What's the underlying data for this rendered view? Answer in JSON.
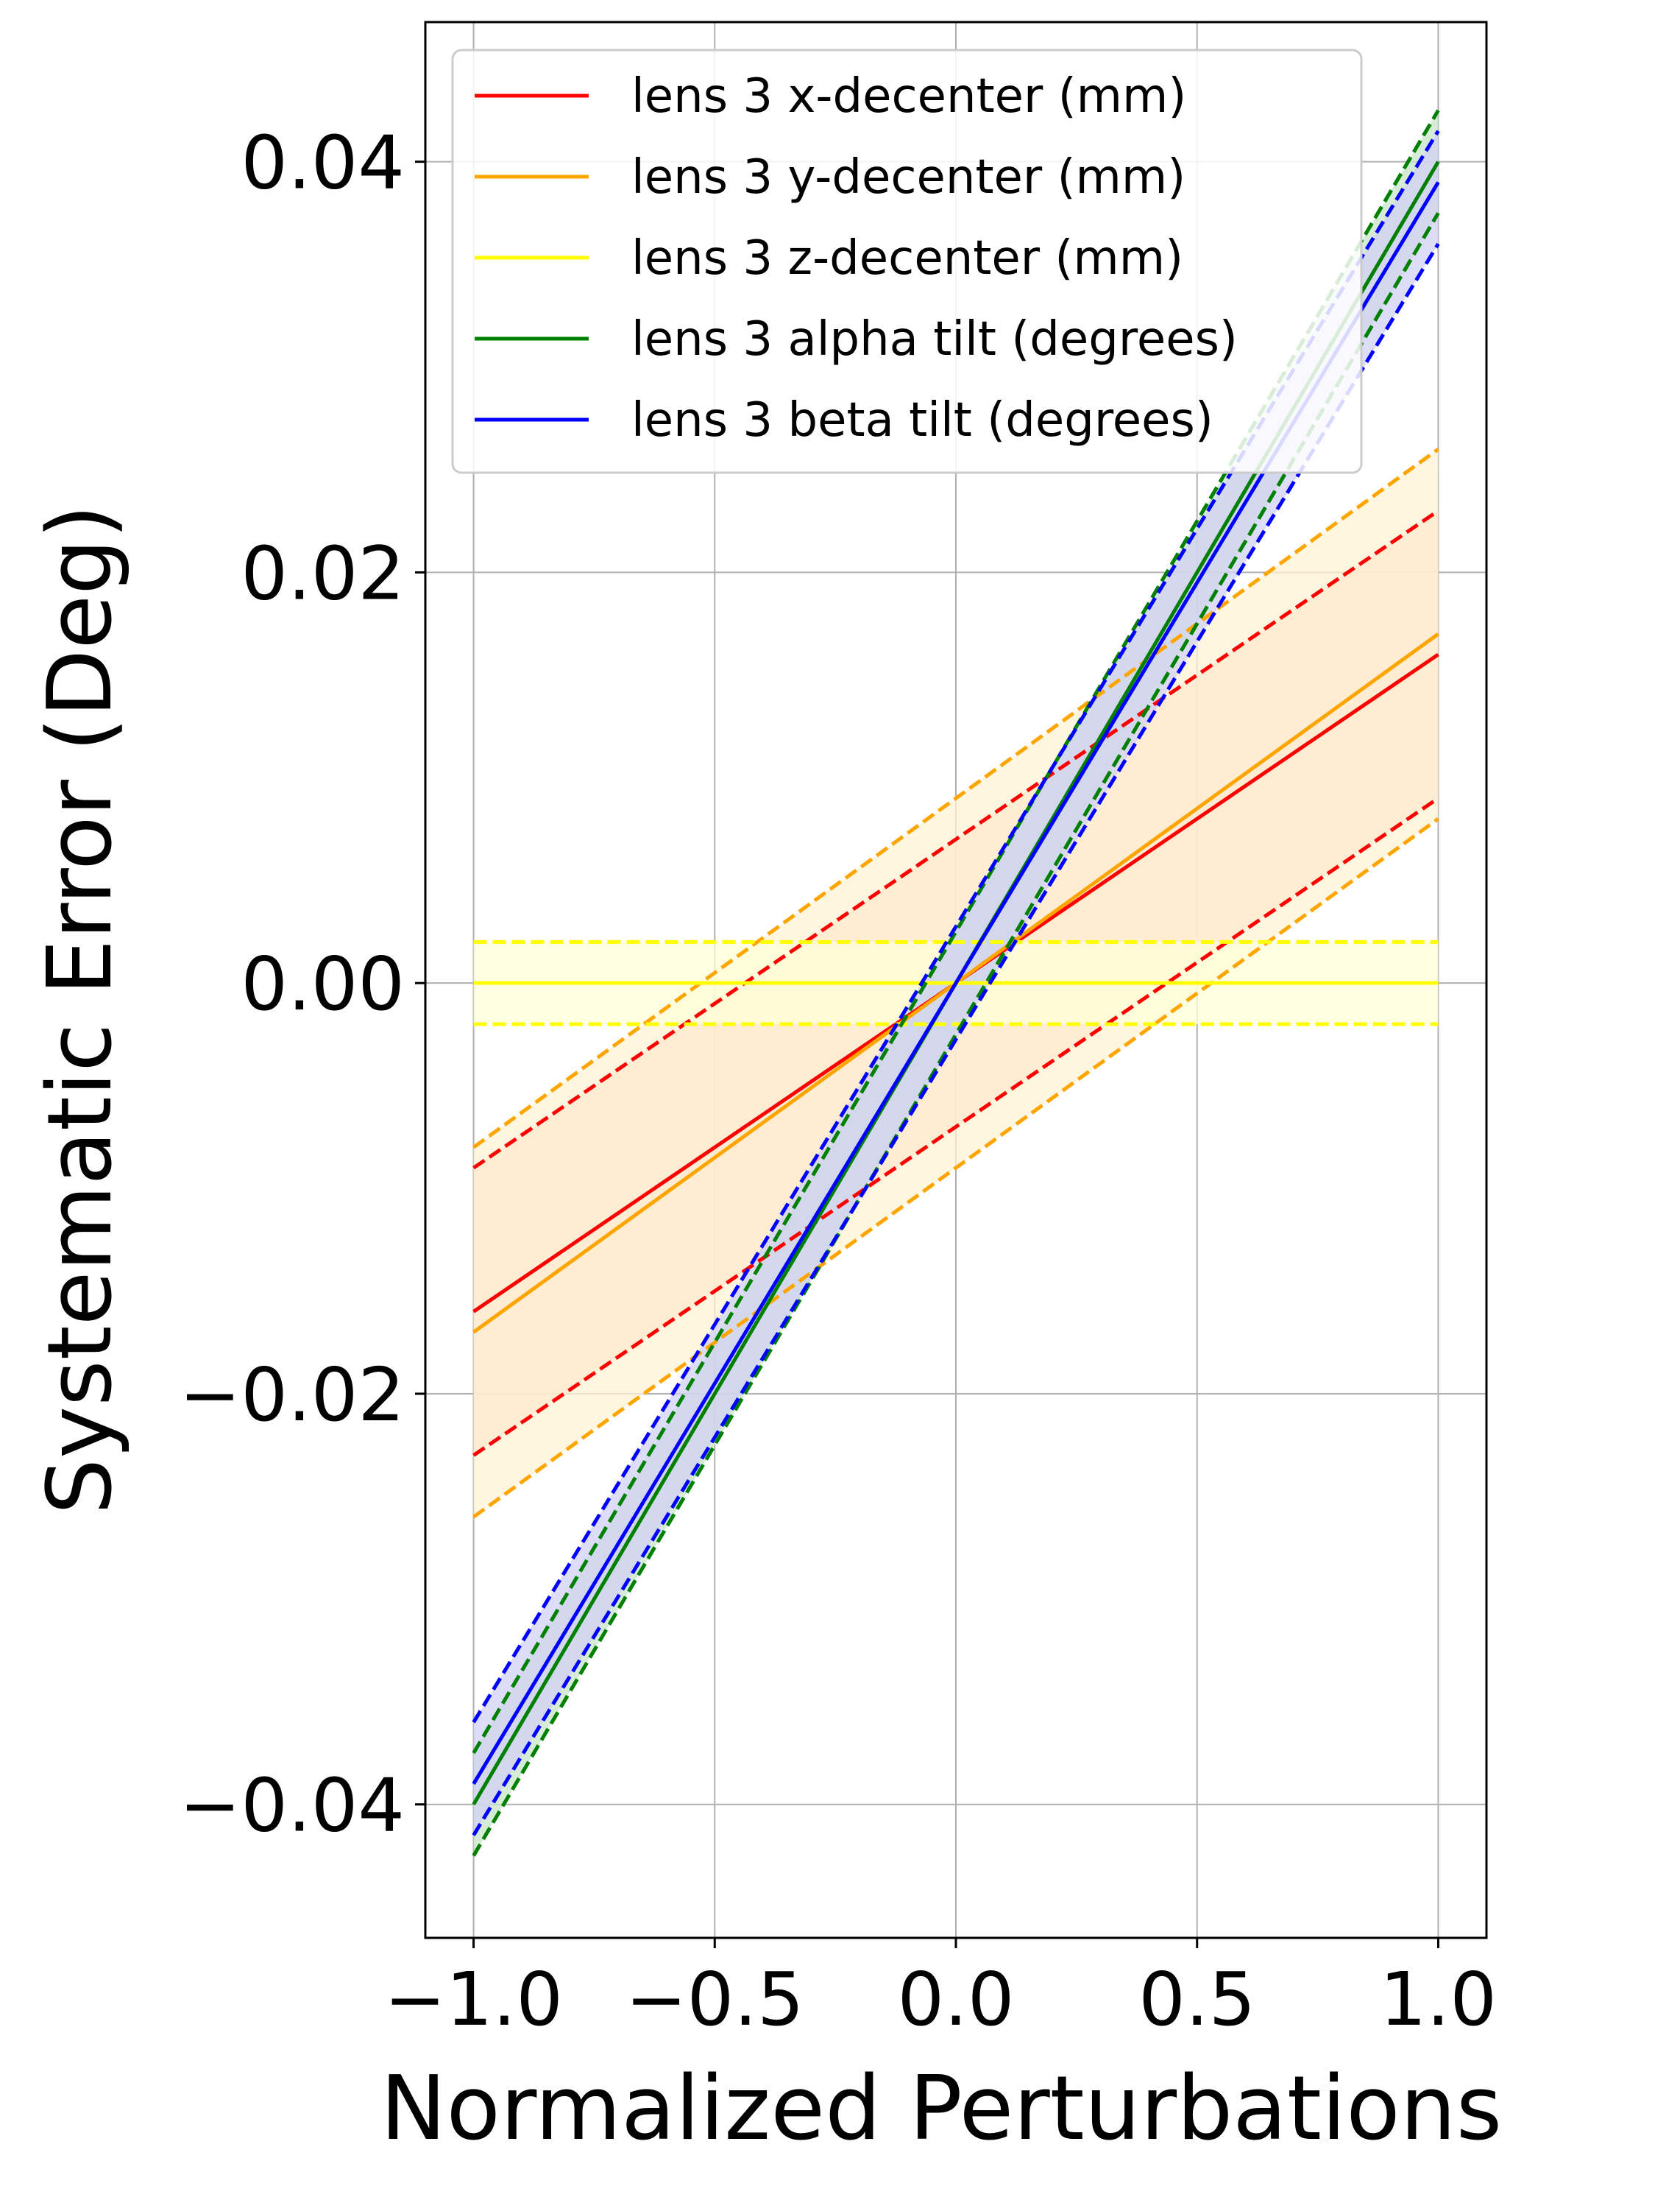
{
  "chart_data": {
    "type": "line",
    "title": "",
    "xlabel": "Normalized Perturbations",
    "ylabel": "Systematic Error (Deg)",
    "xlim": [
      -1.1,
      1.1
    ],
    "ylim": [
      -0.0465,
      0.0468
    ],
    "xticks": [
      -1.0,
      -0.5,
      0.0,
      0.5,
      1.0
    ],
    "xtick_labels": [
      "−1.0",
      "−0.5",
      "0.0",
      "0.5",
      "1.0"
    ],
    "yticks": [
      -0.04,
      -0.02,
      0.0,
      0.02,
      0.04
    ],
    "ytick_labels": [
      "−0.04",
      "−0.02",
      "0.00",
      "0.02",
      "0.04"
    ],
    "grid": true,
    "legend_position": "upper-left",
    "x": [
      -1.0,
      1.0
    ],
    "series": [
      {
        "name": "lens 3 x-decenter (mm)",
        "color": "#ff0000",
        "band_color": "#ffd0b8",
        "values": [
          -0.016,
          0.016
        ],
        "lower": [
          -0.023,
          0.009
        ],
        "upper": [
          -0.009,
          0.023
        ]
      },
      {
        "name": "lens 3 y-decenter (mm)",
        "color": "#ffa500",
        "band_color": "#fff3d6",
        "values": [
          -0.017,
          0.017
        ],
        "lower": [
          -0.026,
          0.008
        ],
        "upper": [
          -0.008,
          0.026
        ]
      },
      {
        "name": "lens 3 z-decenter (mm)",
        "color": "#ffff00",
        "band_color": "#ffffd8",
        "values": [
          0.0,
          0.0
        ],
        "lower": [
          -0.002,
          -0.002
        ],
        "upper": [
          0.002,
          0.002
        ]
      },
      {
        "name": "lens 3 alpha tilt (degrees)",
        "color": "#008000",
        "band_color": "#c9e6c9",
        "values": [
          -0.04,
          0.04
        ],
        "lower": [
          -0.0425,
          0.0375
        ],
        "upper": [
          -0.0375,
          0.0425
        ]
      },
      {
        "name": "lens 3 beta tilt (degrees)",
        "color": "#0000ff",
        "band_color": "#d2d2f5",
        "values": [
          -0.039,
          0.039
        ],
        "lower": [
          -0.0415,
          0.036
        ],
        "upper": [
          -0.036,
          0.0415
        ]
      }
    ]
  }
}
